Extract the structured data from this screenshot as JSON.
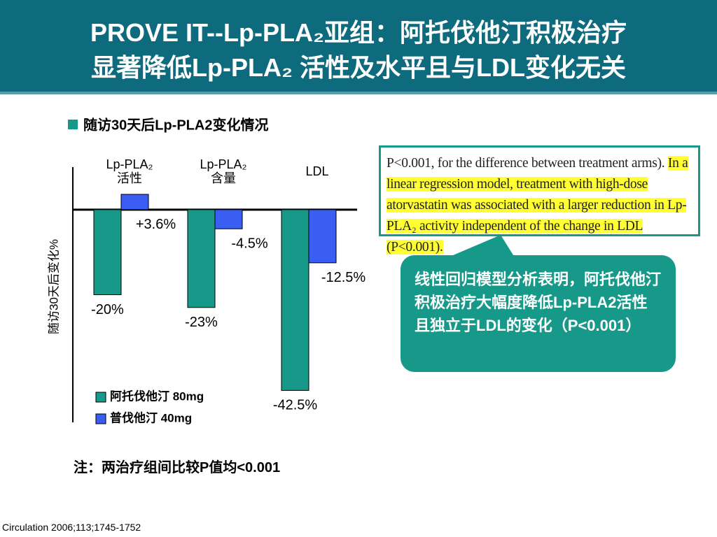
{
  "header": {
    "title_lines": [
      "PROVE IT--Lp-PLA₂亚组：阿托伐他汀积极治疗",
      "显著降低Lp-PLA₂ 活性及水平且与LDL变化无关"
    ]
  },
  "chart_data": {
    "type": "bar",
    "title": "随访30天后Lp-PLA2变化情况",
    "y_label": "随访30天后变化%",
    "categories": [
      "Lp-PLA₂ 活性",
      "Lp-PLA₂ 含量",
      "LDL"
    ],
    "series": [
      {
        "name": "阿托伐他汀 80mg",
        "color": "#17998a",
        "values": [
          -20,
          -23,
          -42.5
        ],
        "value_labels": [
          "-20%",
          "-23%",
          "-42.5%"
        ]
      },
      {
        "name": "普伐他汀 40mg",
        "color": "#3b5ef2",
        "values": [
          3.6,
          -4.5,
          -12.5
        ],
        "value_labels": [
          "+3.6%",
          "-4.5%",
          "-12.5%"
        ]
      }
    ],
    "ylim": [
      -50,
      10
    ],
    "note": "注：两治疗组间比较P值均<0.001"
  },
  "excerpt": {
    "plain": "P<0.001, for the difference between treatment arms). ",
    "highlighted": "In a linear regression model, treatment with high-dose atorvastatin was associated with a larger reduction in Lp-PLA₂ activity independent of the change in LDL (P<0.001)."
  },
  "callout": "线性回归模型分析表明，阿托伐他汀积极治疗大幅度降低Lp-PLA2活性且独立于LDL的变化（P<0.001）",
  "citation": "Circulation 2006;113;1745-1752"
}
